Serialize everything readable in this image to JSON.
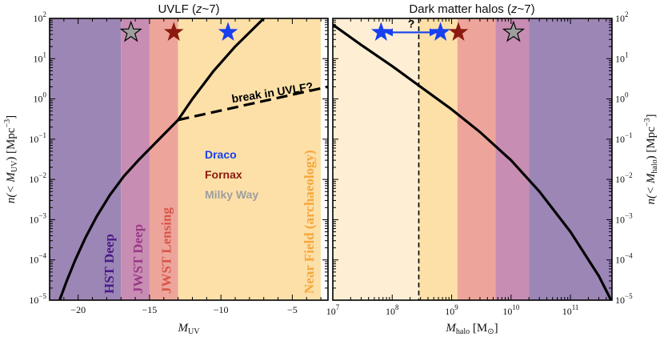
{
  "colors": {
    "hst": "#9c86b5",
    "jwst_deep": "#c88db3",
    "jwst_lensing": "#eda59b",
    "near_field": "#fde0a8",
    "near_field_light": "#fdeed4",
    "draco": "#1640f0",
    "fornax": "#8c1a10",
    "milky_way": "#9e9e9e",
    "curve": "#000000"
  },
  "chart_data": [
    {
      "type": "line",
      "title": "UVLF (z~7)",
      "title_parts": {
        "prefix": "UVLF (",
        "z": "z",
        "suffix": "~7)"
      },
      "xlabel": "M",
      "xlabel_sub": "UV",
      "ylabel_parts": {
        "pre": "n(< M",
        "sub": "UV",
        "post": ") [Mpc",
        "sup": "−3",
        "end": "]"
      },
      "xlim": [
        -22,
        -2.5
      ],
      "ylim": [
        1e-05,
        100
      ],
      "yscale": "log",
      "xticks": [
        -20,
        -15,
        -10,
        -5
      ],
      "xtick_labels": [
        "−20",
        "−15",
        "−10",
        "−5"
      ],
      "yticks": [
        1e-05,
        0.0001,
        0.001,
        0.01,
        0.1,
        1,
        10,
        100
      ],
      "ytick_labels": [
        {
          "b": "10",
          "e": "−5"
        },
        {
          "b": "10",
          "e": "−4"
        },
        {
          "b": "10",
          "e": "−3"
        },
        {
          "b": "10",
          "e": "−2"
        },
        {
          "b": "10",
          "e": "−1"
        },
        {
          "b": "10",
          "e": "0"
        },
        {
          "b": "10",
          "e": "1"
        },
        {
          "b": "10",
          "e": "2"
        }
      ],
      "regions": [
        {
          "label": "HST Deep",
          "from": -22,
          "to": -17,
          "color_key": "hst",
          "text_color": "#4a1a8a"
        },
        {
          "label": "JWST Deep",
          "from": -17,
          "to": -15,
          "color_key": "jwst_deep",
          "text_color": "#9a3a88"
        },
        {
          "label": "JWST Lensing",
          "from": -15,
          "to": -13,
          "color_key": "jwst_lensing",
          "text_color": "#d8554a"
        },
        {
          "label": "Near Field (archaeology)",
          "from": -13,
          "to": -3,
          "color_key": "near_field",
          "text_color": "#f6a73a"
        }
      ],
      "series": [
        {
          "style": "solid",
          "x": [
            -21.3,
            -20.8,
            -20.2,
            -19.5,
            -18.7,
            -17.8,
            -16.8,
            -15.7,
            -14.6,
            -13.0,
            -12.0,
            -10.5,
            -9.0,
            -7.0
          ],
          "y": [
            1e-05,
            3e-05,
            0.0001,
            0.00035,
            0.0012,
            0.004,
            0.012,
            0.032,
            0.08,
            0.3,
            1.0,
            5.0,
            20,
            100
          ]
        },
        {
          "style": "dashed",
          "x": [
            -13.0,
            -2.5
          ],
          "y": [
            0.3,
            2.0
          ]
        }
      ],
      "stars": [
        {
          "galaxy": "Milky Way",
          "x": -16.3,
          "y": 45,
          "color_key": "milky_way"
        },
        {
          "galaxy": "Fornax",
          "x": -13.3,
          "y": 45,
          "color_key": "fornax"
        },
        {
          "galaxy": "Draco",
          "x": -9.5,
          "y": 45,
          "color_key": "draco"
        }
      ],
      "annotation": {
        "text": "break in UVLF?",
        "x": -9.2,
        "y": 0.8,
        "angle": -9
      },
      "legend": [
        {
          "label": "Draco",
          "color_key": "draco"
        },
        {
          "label": "Fornax",
          "color_key": "fornax"
        },
        {
          "label": "Milky Way",
          "color_key": "milky_way"
        }
      ]
    },
    {
      "type": "line",
      "title": "Dark matter halos (z~7)",
      "title_parts": {
        "prefix": "Dark matter halos (",
        "z": "z",
        "suffix": "~7)"
      },
      "xlabel": "M",
      "xlabel_sub": "halo",
      "xlabel_unit": " [M",
      "xlabel_unit_sub": "⊙",
      "xlabel_end": "]",
      "ylabel_parts": {
        "pre": "n(< M",
        "sub": "halo",
        "post": ") [Mpc",
        "sup": "−3",
        "end": "]"
      },
      "xlim": [
        10000000.0,
        500000000000.0
      ],
      "xscale": "log",
      "ylim": [
        1e-05,
        100
      ],
      "yscale": "log",
      "xticks": [
        10000000.0,
        100000000.0,
        1000000000.0,
        10000000000.0,
        100000000000.0
      ],
      "xtick_labels": [
        {
          "b": "10",
          "e": "7"
        },
        {
          "b": "10",
          "e": "8"
        },
        {
          "b": "10",
          "e": "9"
        },
        {
          "b": "10",
          "e": "10"
        },
        {
          "b": "10",
          "e": "11"
        }
      ],
      "yticks": [
        1e-05,
        0.0001,
        0.001,
        0.01,
        0.1,
        1,
        10,
        100
      ],
      "ytick_labels": [
        {
          "b": "10",
          "e": "−5"
        },
        {
          "b": "10",
          "e": "−4"
        },
        {
          "b": "10",
          "e": "−3"
        },
        {
          "b": "10",
          "e": "−2"
        },
        {
          "b": "10",
          "e": "−1"
        },
        {
          "b": "10",
          "e": "0"
        },
        {
          "b": "10",
          "e": "1"
        },
        {
          "b": "10",
          "e": "2"
        }
      ],
      "regions": [
        {
          "from": 10000000.0,
          "to": 280000000.0,
          "color_key": "near_field_light"
        },
        {
          "from": 280000000.0,
          "to": 1250000000.0,
          "color_key": "near_field"
        },
        {
          "from": 1250000000.0,
          "to": 5500000000.0,
          "color_key": "jwst_lensing"
        },
        {
          "from": 5500000000.0,
          "to": 20000000000.0,
          "color_key": "jwst_deep"
        },
        {
          "from": 20000000000.0,
          "to": 500000000000.0,
          "color_key": "hst"
        }
      ],
      "vline": {
        "x": 280000000.0,
        "style": "dashed"
      },
      "series": [
        {
          "style": "solid",
          "x": [
            10000000.0,
            30000000.0,
            100000000.0,
            300000000.0,
            1000000000.0,
            3000000000.0,
            10000000000.0,
            30000000000.0,
            100000000000.0,
            300000000000.0,
            500000000000.0
          ],
          "y": [
            70,
            22,
            6.5,
            2.0,
            0.55,
            0.15,
            0.03,
            0.005,
            0.0005,
            4e-05,
            9e-06
          ]
        }
      ],
      "stars": [
        {
          "galaxy": "Draco",
          "x": 65000000.0,
          "y": 45,
          "color_key": "draco"
        },
        {
          "galaxy": "Draco",
          "x": 650000000.0,
          "y": 45,
          "color_key": "draco"
        },
        {
          "galaxy": "Fornax",
          "x": 1300000000.0,
          "y": 45,
          "color_key": "fornax"
        },
        {
          "galaxy": "Milky Way",
          "x": 11000000000.0,
          "y": 45,
          "color_key": "milky_way"
        }
      ],
      "arrow": {
        "from": 75000000.0,
        "to": 580000000.0,
        "y": 45,
        "label": "?",
        "color_key": "draco"
      }
    }
  ]
}
